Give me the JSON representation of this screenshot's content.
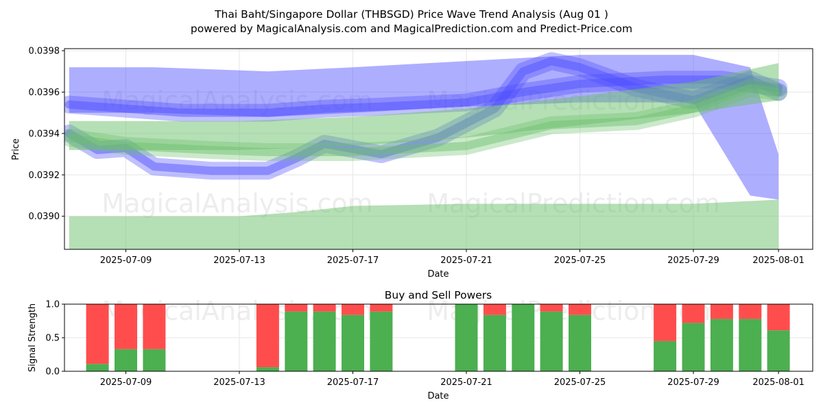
{
  "header": {
    "title_line1": "Thai Baht/Singapore Dollar (THBSGD) Price Wave Trend Analysis (Aug 01 )",
    "title_line2": "powered by MagicalAnalysis.com and MagicalPrediction.com and Predict-Price.com"
  },
  "watermarks": [
    "MagicalAnalysis.com",
    "MagicalPrediction.com"
  ],
  "colors": {
    "blue_band": "#4b4bff",
    "green_band": "#6bbf6b",
    "buy": "#4caf50",
    "sell": "#ff4d4d",
    "grid": "#e6e6e6"
  },
  "chart_data": [
    {
      "type": "area",
      "title": "",
      "xlabel": "Date",
      "ylabel": "Price",
      "xlim": [
        "2025-07-06",
        "2025-08-02"
      ],
      "ylim": [
        0.03884,
        0.03981
      ],
      "y_ticks": [
        "0.0390",
        "0.0392",
        "0.0394",
        "0.0396",
        "0.0398"
      ],
      "x_ticks": [
        "2025-07-09",
        "2025-07-13",
        "2025-07-17",
        "2025-07-21",
        "2025-07-25",
        "2025-07-29",
        "2025-08-01"
      ],
      "grid": true,
      "series": [
        {
          "color": "blue",
          "kind": "band",
          "x": [
            "2025-07-07",
            "2025-07-10",
            "2025-07-14",
            "2025-07-17",
            "2025-07-21",
            "2025-07-25",
            "2025-07-29",
            "2025-07-31",
            "2025-08-01"
          ],
          "upper": [
            0.03972,
            0.03972,
            0.0397,
            0.03972,
            0.03975,
            0.03978,
            0.03978,
            0.03972,
            0.0393
          ],
          "lower": [
            0.0395,
            0.0395,
            0.03948,
            0.0395,
            0.03953,
            0.03955,
            0.03955,
            0.0391,
            0.03908
          ]
        },
        {
          "color": "blue",
          "kind": "line",
          "x": [
            "2025-07-07",
            "2025-07-08",
            "2025-07-09",
            "2025-07-10",
            "2025-07-12",
            "2025-07-14",
            "2025-07-15",
            "2025-07-16",
            "2025-07-18",
            "2025-07-20",
            "2025-07-22",
            "2025-07-23",
            "2025-07-24",
            "2025-07-25",
            "2025-07-27",
            "2025-07-29",
            "2025-07-31",
            "2025-08-01"
          ],
          "y": [
            0.0394,
            0.03932,
            0.03933,
            0.03924,
            0.03922,
            0.03922,
            0.03928,
            0.03935,
            0.0393,
            0.03938,
            0.03952,
            0.0397,
            0.03975,
            0.03972,
            0.03962,
            0.03956,
            0.03966,
            0.0396
          ]
        },
        {
          "color": "blue",
          "kind": "line",
          "x": [
            "2025-07-07",
            "2025-07-09",
            "2025-07-11",
            "2025-07-14",
            "2025-07-16",
            "2025-07-18",
            "2025-07-21",
            "2025-07-23",
            "2025-07-25",
            "2025-07-28",
            "2025-07-30",
            "2025-08-01"
          ],
          "y": [
            0.03954,
            0.03952,
            0.0395,
            0.0395,
            0.03952,
            0.03953,
            0.03955,
            0.0396,
            0.03964,
            0.03966,
            0.03966,
            0.03962
          ]
        },
        {
          "color": "green",
          "kind": "band",
          "x": [
            "2025-07-07",
            "2025-07-09",
            "2025-07-13",
            "2025-07-17",
            "2025-07-21",
            "2025-07-25",
            "2025-07-29",
            "2025-08-01"
          ],
          "upper": [
            0.03946,
            0.03946,
            0.03946,
            0.03948,
            0.03952,
            0.03958,
            0.03965,
            0.03974
          ],
          "lower": [
            0.03932,
            0.03932,
            0.03932,
            0.03934,
            0.03938,
            0.03944,
            0.0395,
            0.03956
          ]
        },
        {
          "color": "green",
          "kind": "band",
          "x": [
            "2025-07-07",
            "2025-07-09",
            "2025-07-13",
            "2025-07-15",
            "2025-07-17",
            "2025-07-21",
            "2025-07-25",
            "2025-07-29",
            "2025-08-01"
          ],
          "upper": [
            0.039,
            0.039,
            0.039,
            0.03902,
            0.03905,
            0.03906,
            0.03906,
            0.03906,
            0.03908
          ],
          "lower": [
            0.03884,
            0.03884,
            0.03884,
            0.03884,
            0.03884,
            0.03884,
            0.03884,
            0.03884,
            0.03884
          ]
        },
        {
          "color": "green",
          "kind": "line",
          "x": [
            "2025-07-07",
            "2025-07-09",
            "2025-07-12",
            "2025-07-14",
            "2025-07-17",
            "2025-07-21",
            "2025-07-24",
            "2025-07-27",
            "2025-07-29",
            "2025-07-31",
            "2025-08-01"
          ],
          "y": [
            0.03938,
            0.03934,
            0.03932,
            0.03931,
            0.03931,
            0.03934,
            0.03944,
            0.03946,
            0.03952,
            0.03962,
            0.0396
          ]
        }
      ]
    },
    {
      "type": "bar",
      "title": "Buy and Sell Powers",
      "xlabel": "Date",
      "ylabel": "Signal Strength",
      "ylim": [
        0,
        1
      ],
      "y_ticks": [
        "0.0",
        "0.5",
        "1.0"
      ],
      "x_ticks": [
        "2025-07-09",
        "2025-07-13",
        "2025-07-17",
        "2025-07-21",
        "2025-07-25",
        "2025-07-29",
        "2025-08-01"
      ],
      "grid": true,
      "categories": [
        "2025-07-08",
        "2025-07-09",
        "2025-07-10",
        "2025-07-14",
        "2025-07-15",
        "2025-07-16",
        "2025-07-17",
        "2025-07-18",
        "2025-07-21",
        "2025-07-22",
        "2025-07-23",
        "2025-07-24",
        "2025-07-25",
        "2025-07-28",
        "2025-07-29",
        "2025-07-30",
        "2025-07-31",
        "2025-08-01"
      ],
      "series": [
        {
          "name": "Buy",
          "values": [
            0.11,
            0.33,
            0.33,
            0.06,
            0.89,
            0.89,
            0.84,
            0.89,
            1.0,
            0.84,
            1.0,
            0.89,
            0.84,
            0.45,
            0.72,
            0.78,
            0.78,
            0.61
          ]
        },
        {
          "name": "Sell",
          "values": [
            0.89,
            0.67,
            0.67,
            0.94,
            0.11,
            0.11,
            0.16,
            0.11,
            0.0,
            0.16,
            0.0,
            0.11,
            0.16,
            0.55,
            0.28,
            0.22,
            0.22,
            0.39
          ]
        }
      ]
    }
  ]
}
